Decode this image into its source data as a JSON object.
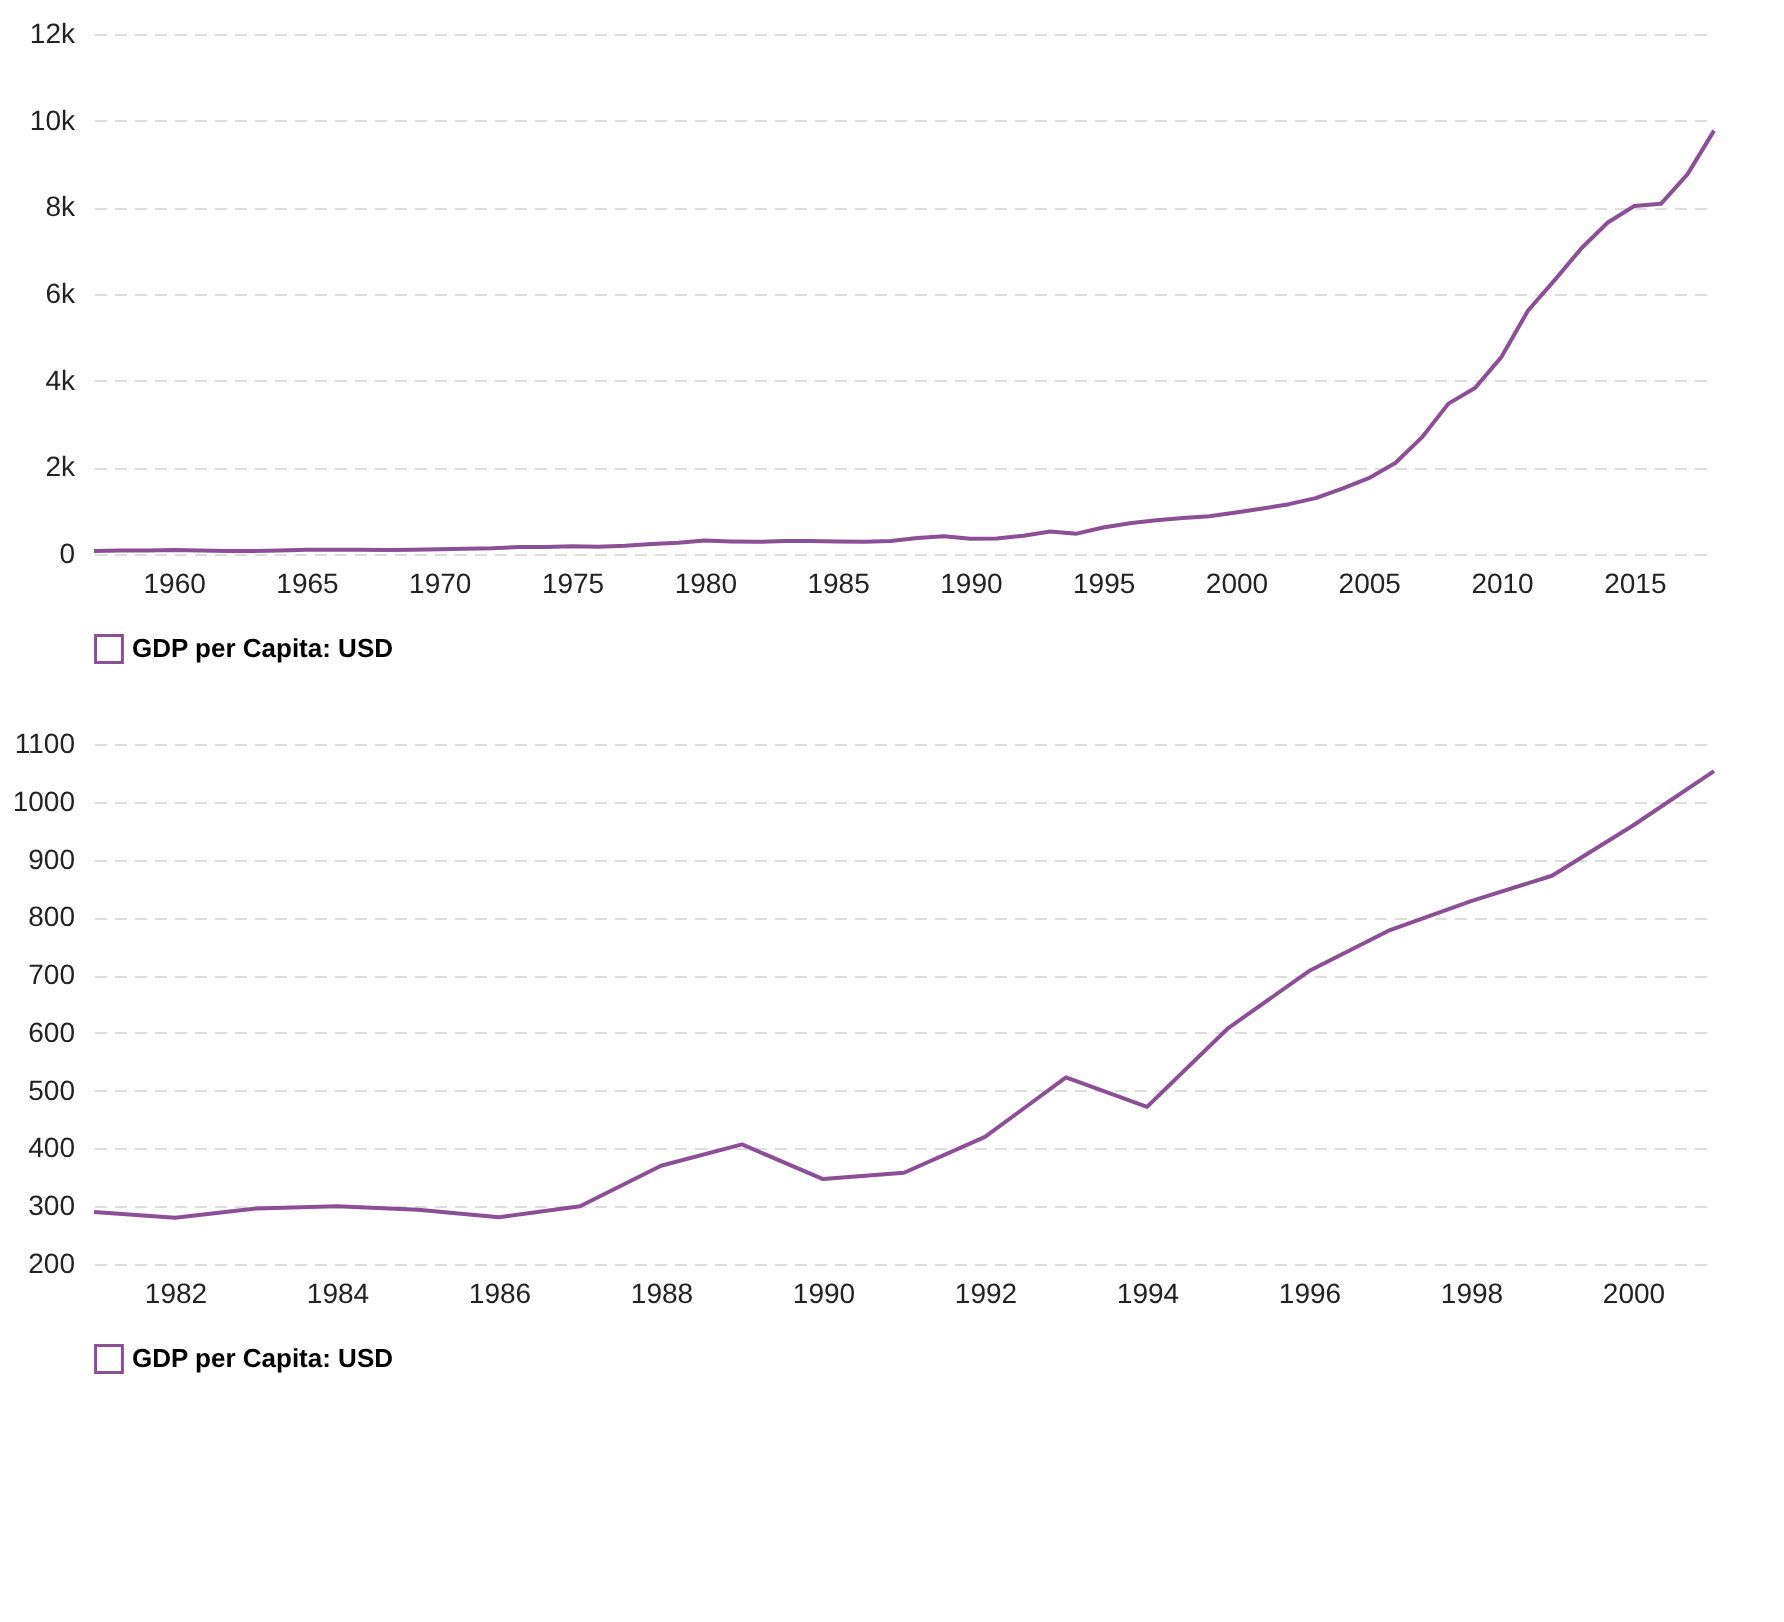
{
  "chart_data": [
    {
      "type": "line",
      "x": [
        1957,
        1958,
        1959,
        1960,
        1961,
        1962,
        1963,
        1964,
        1965,
        1966,
        1967,
        1968,
        1969,
        1970,
        1971,
        1972,
        1973,
        1974,
        1975,
        1976,
        1977,
        1978,
        1979,
        1980,
        1981,
        1982,
        1983,
        1984,
        1985,
        1986,
        1987,
        1988,
        1989,
        1990,
        1991,
        1992,
        1993,
        1994,
        1995,
        1996,
        1997,
        1998,
        1999,
        2000,
        2001,
        2002,
        2003,
        2004,
        2005,
        2006,
        2007,
        2008,
        2009,
        2010,
        2011,
        2012,
        2013,
        2014,
        2015,
        2016,
        2017,
        2018
      ],
      "series": [
        {
          "name": "GDP per Capita: USD",
          "color": "#8b4f96",
          "values": [
            70,
            80,
            80,
            90,
            80,
            70,
            70,
            80,
            100,
            100,
            100,
            90,
            100,
            110,
            120,
            130,
            160,
            160,
            180,
            170,
            190,
            230,
            260,
            310,
            290,
            280,
            300,
            300,
            290,
            280,
            300,
            370,
            410,
            350,
            360,
            420,
            520,
            470,
            610,
            710,
            780,
            830,
            870,
            960,
            1050,
            1150,
            1290,
            1510,
            1750,
            2100,
            2690,
            3470,
            3830,
            4550,
            5620,
            6320,
            7050,
            7650,
            8030,
            8080,
            8760,
            9770
          ]
        }
      ],
      "xlim": [
        1957,
        2018
      ],
      "xticks": [
        1960,
        1965,
        1970,
        1975,
        1980,
        1985,
        1990,
        1995,
        2000,
        2005,
        2010,
        2015
      ],
      "ylim": [
        0,
        12000
      ],
      "yticks": [
        0,
        {
          "value": 2000,
          "label": "2k"
        },
        {
          "value": 4000,
          "label": "4k"
        },
        {
          "value": 6000,
          "label": "6k"
        },
        {
          "value": 8000,
          "label": "8k"
        },
        {
          "value": 10000,
          "label": "10k"
        },
        {
          "value": 12000,
          "label": "12k"
        }
      ],
      "grid": "y",
      "legend": "bottom",
      "line_style": "solid"
    },
    {
      "type": "line",
      "x": [
        1981,
        1982,
        1983,
        1984,
        1985,
        1986,
        1987,
        1988,
        1989,
        1990,
        1991,
        1992,
        1993,
        1994,
        1995,
        1996,
        1997,
        1998,
        1999,
        2000,
        2001
      ],
      "series": [
        {
          "name": "GDP per Capita: USD",
          "color": "#8b4f96",
          "values": [
            290,
            280,
            296,
            300,
            294,
            281,
            300,
            370,
            407,
            347,
            358,
            420,
            523,
            472,
            608,
            707,
            778,
            828,
            872,
            959,
            1053
          ]
        }
      ],
      "xlim": [
        1981,
        2001
      ],
      "xticks": [
        1982,
        1984,
        1986,
        1988,
        1990,
        1992,
        1994,
        1996,
        1998,
        2000
      ],
      "ylim": [
        200,
        1100
      ],
      "yticks": [
        200,
        300,
        400,
        500,
        600,
        700,
        800,
        900,
        1000,
        1100
      ],
      "grid": "y",
      "legend": "bottom",
      "line_style": "solid"
    }
  ]
}
